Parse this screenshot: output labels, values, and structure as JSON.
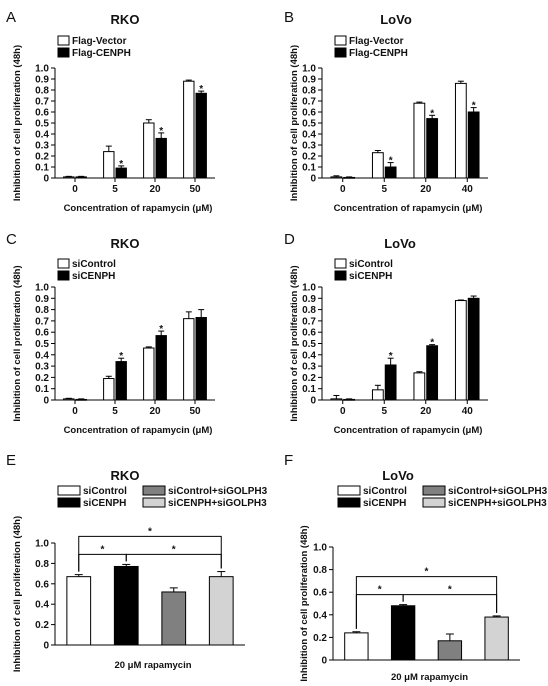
{
  "panels": [
    {
      "label": "A",
      "chart_data": {
        "type": "bar",
        "title": "RKO",
        "xlabel": "Concentration of rapamycin (μM)",
        "ylabel": "Inhibition of cell proliferation (48h)",
        "categories": [
          "0",
          "5",
          "20",
          "50"
        ],
        "ylim": [
          0,
          1.0
        ],
        "yticks": [
          "0",
          "0.1",
          "0.2",
          "0.3",
          "0.4",
          "0.5",
          "0.6",
          "0.7",
          "0.8",
          "0.9",
          "1.0"
        ],
        "legend_position": "top-left",
        "series": [
          {
            "name": "Flag-Vector",
            "color": "#ffffff",
            "values": [
              0.01,
              0.24,
              0.5,
              0.88
            ],
            "errors": [
              0.005,
              0.05,
              0.03,
              0.01
            ]
          },
          {
            "name": "Flag-CENPH",
            "color": "#000000",
            "values": [
              0.01,
              0.09,
              0.36,
              0.77
            ],
            "errors": [
              0.005,
              0.02,
              0.05,
              0.02
            ]
          }
        ],
        "significance": [
          [
            1,
            1
          ],
          [
            1,
            2
          ],
          [
            1,
            3
          ]
        ]
      }
    },
    {
      "label": "B",
      "chart_data": {
        "type": "bar",
        "title": "LoVo",
        "xlabel": "Concentration of rapamycin (μM)",
        "ylabel": "Inhibition of cell proliferation (48h)",
        "categories": [
          "0",
          "5",
          "20",
          "40"
        ],
        "ylim": [
          0,
          1.0
        ],
        "yticks": [
          "0",
          "0.1",
          "0.2",
          "0.3",
          "0.4",
          "0.5",
          "0.6",
          "0.7",
          "0.8",
          "0.9",
          "1.0"
        ],
        "legend_position": "top-left",
        "series": [
          {
            "name": "Flag-Vector",
            "color": "#ffffff",
            "values": [
              0.01,
              0.23,
              0.68,
              0.86
            ],
            "errors": [
              0.01,
              0.02,
              0.01,
              0.02
            ]
          },
          {
            "name": "Flag-CENPH",
            "color": "#000000",
            "values": [
              0.005,
              0.1,
              0.54,
              0.6
            ],
            "errors": [
              0.005,
              0.04,
              0.03,
              0.04
            ]
          }
        ],
        "significance": [
          [
            1,
            1
          ],
          [
            1,
            2
          ],
          [
            1,
            3
          ]
        ]
      }
    },
    {
      "label": "C",
      "chart_data": {
        "type": "bar",
        "title": "RKO",
        "xlabel": "Concentration of rapamycin (μM)",
        "ylabel": "Inhibition of cell proliferation (48h)",
        "categories": [
          "0",
          "5",
          "20",
          "50"
        ],
        "ylim": [
          0,
          1.0
        ],
        "yticks": [
          "0",
          "0.1",
          "0.2",
          "0.3",
          "0.4",
          "0.5",
          "0.6",
          "0.7",
          "0.8",
          "0.9",
          "1.0"
        ],
        "legend_position": "top-left",
        "series": [
          {
            "name": "siControl",
            "color": "#ffffff",
            "values": [
              0.01,
              0.19,
              0.46,
              0.72
            ],
            "errors": [
              0.005,
              0.02,
              0.01,
              0.06
            ]
          },
          {
            "name": "siCENPH",
            "color": "#000000",
            "values": [
              0.005,
              0.34,
              0.57,
              0.73
            ],
            "errors": [
              0.005,
              0.03,
              0.04,
              0.07
            ]
          }
        ],
        "significance": [
          [
            1,
            1
          ],
          [
            1,
            2
          ]
        ]
      }
    },
    {
      "label": "D",
      "chart_data": {
        "type": "bar",
        "title": "LoVo",
        "xlabel": "Concentration of rapamycin (μM)",
        "ylabel": "Inhibition of cell proliferation (48h)",
        "categories": [
          "0",
          "5",
          "20",
          "40"
        ],
        "ylim": [
          0,
          1.0
        ],
        "yticks": [
          "0",
          "0.1",
          "0.2",
          "0.3",
          "0.4",
          "0.5",
          "0.6",
          "0.7",
          "0.8",
          "0.9",
          "1.0"
        ],
        "legend_position": "top-left",
        "series": [
          {
            "name": "siControl",
            "color": "#ffffff",
            "values": [
              0.01,
              0.09,
              0.24,
              0.88
            ],
            "errors": [
              0.03,
              0.04,
              0.01,
              0.005
            ]
          },
          {
            "name": "siCENPH",
            "color": "#000000",
            "values": [
              0.005,
              0.31,
              0.48,
              0.9
            ],
            "errors": [
              0.005,
              0.06,
              0.01,
              0.02
            ]
          }
        ],
        "significance": [
          [
            1,
            1
          ],
          [
            1,
            2
          ]
        ]
      }
    },
    {
      "label": "E",
      "chart_data": {
        "type": "bar",
        "title": "RKO",
        "xlabel": "20 μM rapamycin",
        "ylabel": "Inhibition of cell proliferation (48h)",
        "categories": [
          "siControl",
          "siCENPH",
          "siControl+siGOLPH3",
          "siCENPH+siGOLPH3"
        ],
        "values": [
          0.67,
          0.77,
          0.52,
          0.67
        ],
        "errors": [
          0.02,
          0.02,
          0.04,
          0.05
        ],
        "colors": [
          "#ffffff",
          "#000000",
          "#808080",
          "#d3d3d3"
        ],
        "ylim": [
          0,
          1.0
        ],
        "yticks": [
          "0",
          "0.2",
          "0.4",
          "0.6",
          "0.8",
          "1.0"
        ],
        "legend_position": "top",
        "brackets": [
          [
            0,
            1
          ],
          [
            0,
            3
          ],
          [
            1,
            3
          ]
        ]
      }
    },
    {
      "label": "F",
      "chart_data": {
        "type": "bar",
        "title": "LoVo",
        "xlabel": "20 μM rapamycin",
        "ylabel": "Inhibition of cell proliferation (48h)",
        "categories": [
          "siControl",
          "siCENPH",
          "siControl+siGOLPH3",
          "siCENPH+siGOLPH3"
        ],
        "values": [
          0.24,
          0.48,
          0.17,
          0.38
        ],
        "errors": [
          0.01,
          0.01,
          0.06,
          0.01
        ],
        "colors": [
          "#ffffff",
          "#000000",
          "#808080",
          "#d3d3d3"
        ],
        "ylim": [
          0,
          1.0
        ],
        "yticks": [
          "0",
          "0.2",
          "0.4",
          "0.6",
          "0.8",
          "1.0"
        ],
        "legend_position": "top",
        "brackets": [
          [
            0,
            1
          ],
          [
            0,
            3
          ],
          [
            1,
            3
          ]
        ]
      }
    }
  ]
}
